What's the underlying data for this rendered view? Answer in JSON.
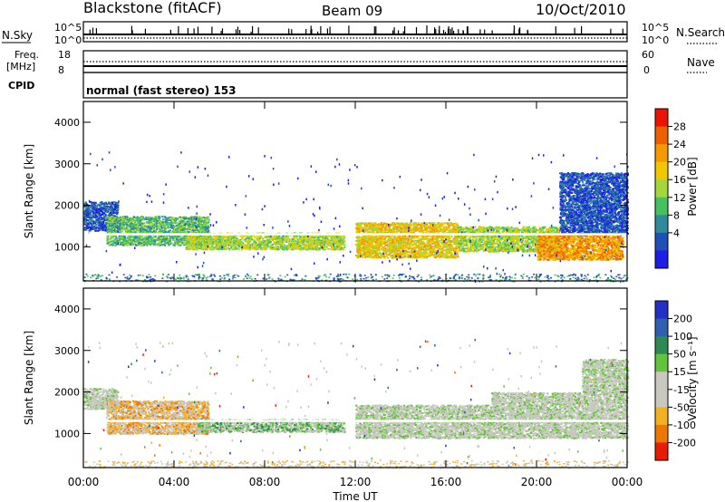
{
  "header": {
    "station": "Blackstone (fitACF)",
    "beam": "Beam 09",
    "date": "10/Oct/2010",
    "mode": "normal (fast stereo) 153"
  },
  "side_labels": {
    "nsky": "N.Sky",
    "freq_line1": "Freq.",
    "freq_line2": "[MHz]",
    "cpid": "CPID",
    "nsearch": "N.Search",
    "nave": "Nave"
  },
  "top_ticks": {
    "sky_left_top": "10^5",
    "sky_left_bottom": "10^0",
    "sky_right_top": "10^5",
    "sky_right_bottom": "10^0",
    "freq_left_top": "18",
    "freq_left_bottom": "8",
    "nave_right_top": "60",
    "nave_right_bottom": "0"
  },
  "chart_data": [
    {
      "type": "heatmap",
      "panel": "power",
      "ylabel": "Slant Range [km]",
      "xlabel": "Time UT",
      "x_ticks": [
        "00:00",
        "04:00",
        "08:00",
        "12:00",
        "16:00",
        "20:00",
        "00:00"
      ],
      "y_ticks": [
        1000,
        2000,
        3000,
        4000
      ],
      "ylim": [
        180,
        4500
      ],
      "xlim_hours": [
        0,
        24
      ],
      "colorbar_label": "Power [dB]",
      "colorbar_ticks": [
        "4",
        "8",
        "12",
        "16",
        "20",
        "24",
        "28"
      ],
      "colorbar_colors": [
        "#1e1ee6",
        "#1f4fb8",
        "#2f8a9c",
        "#46c060",
        "#a5d63a",
        "#f0c800",
        "#f39a00",
        "#ee5f00",
        "#ea1400"
      ],
      "scatter_regions": [
        {
          "t0": 0.0,
          "t1": 1.5,
          "r0": 1400,
          "r1": 2100,
          "level": 1
        },
        {
          "t0": 1.0,
          "t1": 5.5,
          "r0": 1050,
          "r1": 1750,
          "level": 3
        },
        {
          "t0": 4.5,
          "t1": 11.5,
          "r0": 950,
          "r1": 1350,
          "level": 4
        },
        {
          "t0": 12.0,
          "t1": 16.5,
          "r0": 750,
          "r1": 1600,
          "level": 5
        },
        {
          "t0": 16.5,
          "t1": 21.0,
          "r0": 900,
          "r1": 1500,
          "level": 4
        },
        {
          "t0": 20.0,
          "t1": 23.8,
          "r0": 700,
          "r1": 1350,
          "level": 6
        },
        {
          "t0": 21.0,
          "t1": 24.0,
          "r0": 1300,
          "r1": 2800,
          "level": 1
        }
      ]
    },
    {
      "type": "heatmap",
      "panel": "velocity",
      "ylabel": "Slant Range [km]",
      "xlabel": "Time UT",
      "x_ticks": [
        "00:00",
        "04:00",
        "08:00",
        "12:00",
        "16:00",
        "20:00",
        "00:00"
      ],
      "y_ticks": [
        1000,
        2000,
        3000,
        4000
      ],
      "ylim": [
        180,
        4500
      ],
      "xlim_hours": [
        0,
        24
      ],
      "colorbar_label": "Velocity [m s⁻¹]",
      "colorbar_ticks": [
        "200",
        "100",
        "50",
        "15",
        "-15",
        "-50",
        "-100",
        "-200"
      ],
      "colorbar_colors": [
        "#2330c8",
        "#2f5fae",
        "#2e8a50",
        "#62c43a",
        "#c8c8c0",
        "#c8c8c0",
        "#f3b022",
        "#ee7700",
        "#e81c00"
      ],
      "scatter_regions": [
        {
          "t0": 0.0,
          "t1": 1.5,
          "r0": 1600,
          "r1": 2100,
          "level": 4
        },
        {
          "t0": 1.0,
          "t1": 5.5,
          "r0": 1000,
          "r1": 1800,
          "level": 6
        },
        {
          "t0": 5.0,
          "t1": 11.5,
          "r0": 1050,
          "r1": 1350,
          "level": 3
        },
        {
          "t0": 12.0,
          "t1": 18.0,
          "r0": 900,
          "r1": 1700,
          "level": 4
        },
        {
          "t0": 18.0,
          "t1": 24.0,
          "r0": 900,
          "r1": 2000,
          "level": 4
        },
        {
          "t0": 22.0,
          "t1": 24.0,
          "r0": 2000,
          "r1": 2800,
          "level": 4
        }
      ]
    }
  ]
}
